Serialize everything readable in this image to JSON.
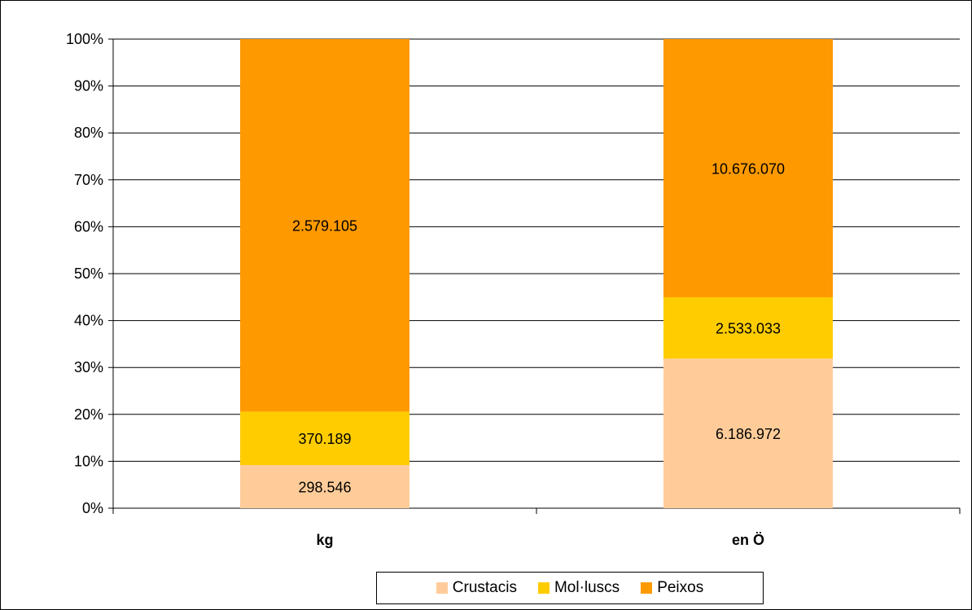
{
  "chart_data": {
    "type": "bar",
    "stacked": "percent",
    "categories": [
      "kg",
      "en Ö"
    ],
    "series": [
      {
        "name": "Crustacis",
        "values": [
          298546,
          6186972
        ],
        "labels": [
          "298.546",
          "6.186.972"
        ],
        "color": "#FFCC99"
      },
      {
        "name": "Mol·luscs",
        "values": [
          370189,
          2533033
        ],
        "labels": [
          "370.189",
          "2.533.033"
        ],
        "color": "#FFCC00"
      },
      {
        "name": "Peixos",
        "values": [
          2579105,
          10676070
        ],
        "labels": [
          "2.579.105",
          "10.676.070"
        ],
        "color": "#FF9900"
      }
    ],
    "y_ticks": [
      "0%",
      "10%",
      "20%",
      "30%",
      "40%",
      "50%",
      "60%",
      "70%",
      "80%",
      "90%",
      "100%"
    ],
    "ylim": [
      0,
      100
    ],
    "grid": true,
    "legend_position": "bottom"
  }
}
